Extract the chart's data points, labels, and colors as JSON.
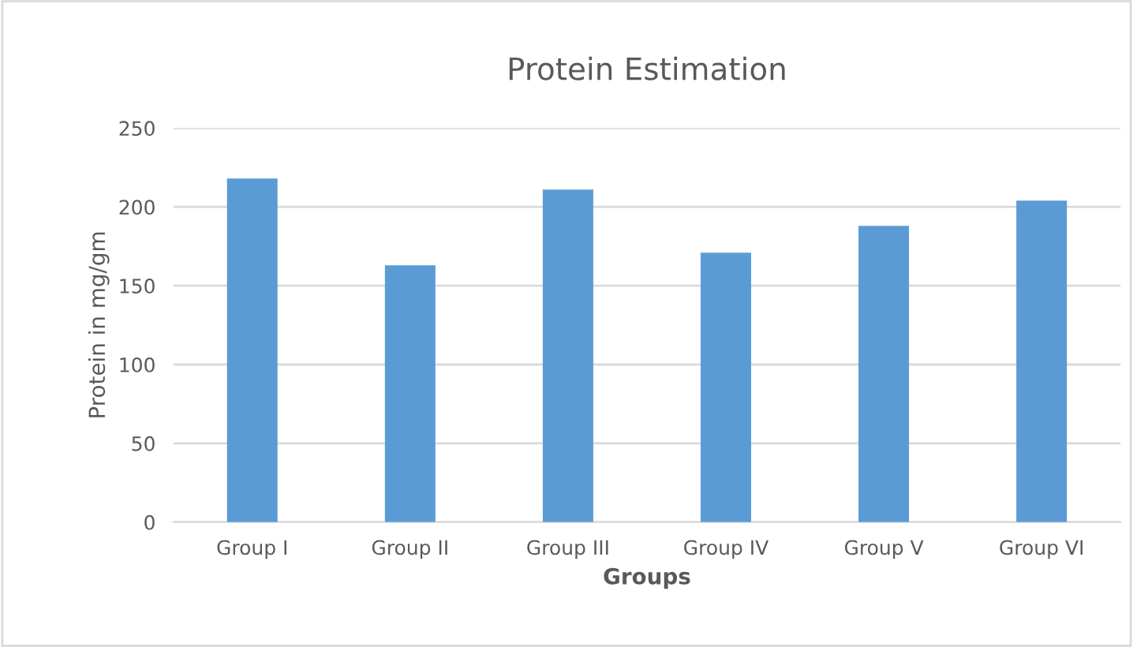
{
  "chart_data": {
    "type": "bar",
    "title": "Protein Estimation",
    "xlabel": "Groups",
    "ylabel": "Protein in mg/gm",
    "categories": [
      "Group I",
      "Group II",
      "Group III",
      "Group IV",
      "Group V",
      "Group VI"
    ],
    "values": [
      218,
      163,
      211,
      171,
      188,
      204
    ],
    "color": "#5b9bd5",
    "ylim": [
      0,
      250
    ],
    "yticks": [
      0,
      50,
      100,
      150,
      200,
      250
    ],
    "grid": "y",
    "legend": false
  }
}
